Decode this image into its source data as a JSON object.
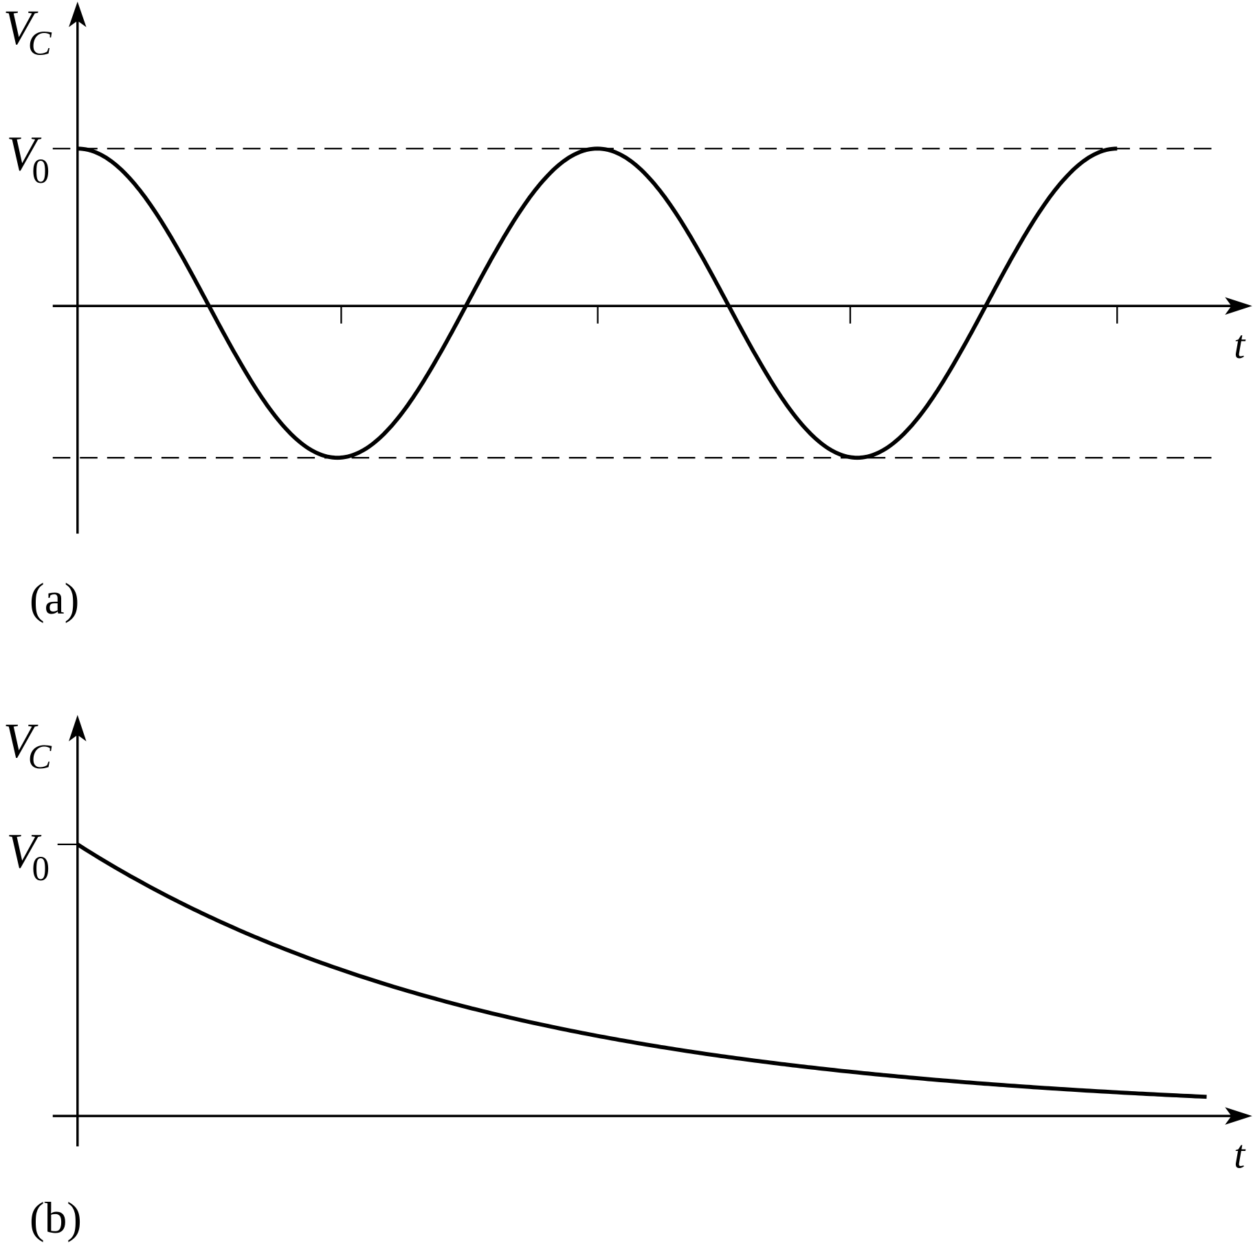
{
  "panels": [
    {
      "label": "(a)",
      "y_axis_label": {
        "main": "V",
        "sub": "C"
      },
      "level_label": {
        "main": "V",
        "sub": "0"
      },
      "x_axis_label": "t"
    },
    {
      "label": "(b)",
      "y_axis_label": {
        "main": "V",
        "sub": "C"
      },
      "level_label": {
        "main": "V",
        "sub": "0"
      },
      "x_axis_label": "t"
    }
  ]
}
